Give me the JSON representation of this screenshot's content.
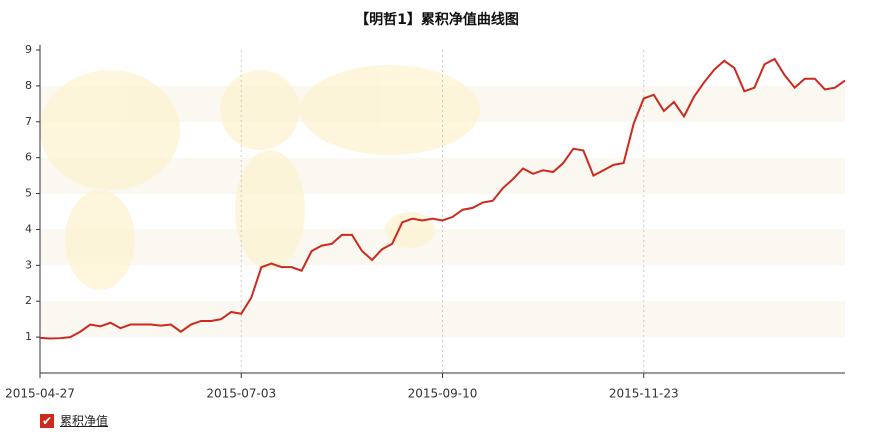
{
  "chart_data": {
    "type": "line",
    "title": "【明哲1】累积净值曲线图",
    "categories": [
      "2015-04-27",
      null,
      null,
      null,
      null,
      null,
      null,
      null,
      null,
      null,
      null,
      null,
      null,
      null,
      null,
      null,
      null,
      null,
      null,
      null,
      "2015-07-03",
      null,
      null,
      null,
      null,
      null,
      null,
      null,
      null,
      null,
      null,
      null,
      null,
      null,
      null,
      null,
      null,
      null,
      null,
      null,
      "2015-09-10",
      null,
      null,
      null,
      null,
      null,
      null,
      null,
      null,
      null,
      null,
      null,
      null,
      null,
      null,
      null,
      null,
      null,
      null,
      null,
      "2015-11-23",
      null,
      null,
      null,
      null,
      null,
      null,
      null,
      null,
      null,
      null,
      null,
      null,
      null,
      null,
      null,
      null,
      null,
      null,
      null,
      null
    ],
    "series": [
      {
        "name": "累积净值",
        "color": "#cc2a1f",
        "values": [
          0.98,
          0.96,
          0.97,
          1.0,
          1.15,
          1.35,
          1.3,
          1.4,
          1.25,
          1.35,
          1.35,
          1.35,
          1.32,
          1.35,
          1.15,
          1.35,
          1.45,
          1.45,
          1.5,
          1.7,
          1.65,
          2.1,
          2.95,
          3.05,
          2.95,
          2.95,
          2.85,
          3.4,
          3.55,
          3.6,
          3.85,
          3.85,
          3.4,
          3.15,
          3.45,
          3.6,
          4.2,
          4.3,
          4.25,
          4.3,
          4.25,
          4.35,
          4.55,
          4.6,
          4.75,
          4.8,
          5.15,
          5.4,
          5.7,
          5.55,
          5.65,
          5.6,
          5.85,
          6.25,
          6.2,
          5.5,
          5.65,
          5.8,
          5.85,
          6.95,
          7.65,
          7.75,
          7.3,
          7.55,
          7.15,
          7.7,
          8.1,
          8.45,
          8.7,
          8.5,
          7.85,
          7.95,
          8.6,
          8.75,
          8.3,
          7.95,
          8.2,
          8.2,
          7.9,
          7.95,
          8.15
        ]
      }
    ],
    "ylim": [
      0,
      9
    ],
    "yticks": [
      1,
      2,
      3,
      4,
      5,
      6,
      7,
      8,
      9
    ],
    "grid": true
  }
}
